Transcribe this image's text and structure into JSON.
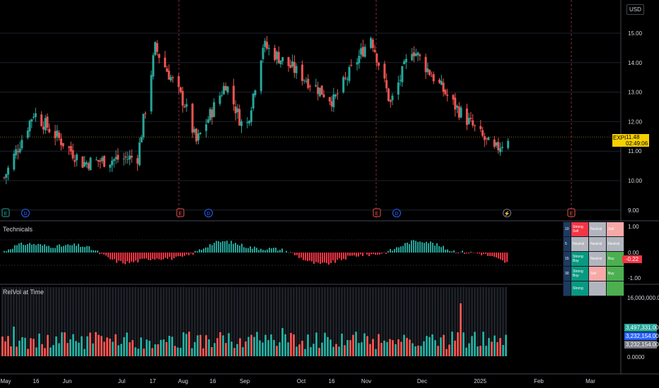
{
  "currency": "USD",
  "symbol_badge": {
    "ticker": "EXPI",
    "price": "11.48",
    "countdown": "02:49:06",
    "color": "#f7d000"
  },
  "colors": {
    "up": "#26a69a",
    "down": "#ef5350",
    "background": "#000000",
    "grid": "#1e222d",
    "event_line": "#8b2b36"
  },
  "price_axis": [
    "15.00",
    "14.00",
    "13.00",
    "12.00",
    "11.00",
    "10.00",
    "9.00"
  ],
  "time_axis": [
    "May",
    "16",
    "Jun",
    "Jul",
    "17",
    "Aug",
    "16",
    "Sep",
    "Oct",
    "16",
    "Nov",
    "Dec",
    "2025",
    "Feb",
    "Mar"
  ],
  "event_markers": [
    {
      "label": "E",
      "type": "earnings",
      "color": "#26a69a"
    },
    {
      "label": "D",
      "type": "dividend",
      "color": "#2962ff"
    },
    {
      "label": "E",
      "type": "earnings",
      "color": "#ef5350"
    },
    {
      "label": "D",
      "type": "dividend",
      "color": "#2962ff"
    },
    {
      "label": "E",
      "type": "earnings",
      "color": "#ef5350"
    },
    {
      "label": "D",
      "type": "dividend",
      "color": "#2962ff"
    },
    {
      "label": "⚡",
      "type": "split",
      "color": "#787b86"
    },
    {
      "label": "E",
      "type": "earnings",
      "color": "#ef5350"
    }
  ],
  "technicals": {
    "title": "Technicals",
    "axis": [
      "1.00",
      "0.00",
      "-1.00"
    ],
    "current_value": "-0.22",
    "table": [
      {
        "period": "10",
        "a": "Strong Sell",
        "b": "Neutral",
        "c": "Sell",
        "ca": "#f23645",
        "cb": "#b2b5be",
        "cc": "#f7a9a7"
      },
      {
        "period": "5",
        "a": "Neutral",
        "b": "Neutral",
        "c": "Neutral",
        "ca": "#b2b5be",
        "cb": "#b2b5be",
        "cc": "#b2b5be"
      },
      {
        "period": "15",
        "a": "Strong Buy",
        "b": "Neutral",
        "c": "Buy",
        "ca": "#089981",
        "cb": "#b2b5be",
        "cc": "#4caf50"
      },
      {
        "period": "30",
        "a": "Strong Buy",
        "b": "Sell",
        "c": "Buy",
        "ca": "#089981",
        "cb": "#f7a9a7",
        "cc": "#4caf50"
      },
      {
        "period": "",
        "a": "Strong",
        "b": "",
        "c": "",
        "ca": "#089981",
        "cb": "#b2b5be",
        "cc": "#4caf50"
      }
    ]
  },
  "relvol": {
    "title": "RelVol at Time",
    "axis": [
      "16,000,000.00",
      "0.0000"
    ],
    "badges": [
      {
        "value": "3,497,331.00",
        "color": "#26a69a"
      },
      {
        "value": "3,232,154.00",
        "color": "#2962ff"
      },
      {
        "value": "3,232,154.00",
        "color": "#787b86"
      }
    ]
  },
  "chart_data": {
    "type": "candlestick",
    "ylim": [
      8.8,
      15.5
    ],
    "x_range": [
      "2024-05-01",
      "2025-03-05"
    ],
    "last_close": 11.48,
    "key_levels_close": [
      {
        "date": "2024-05-01",
        "close": 10.1
      },
      {
        "date": "2024-05-16",
        "close": 12.3
      },
      {
        "date": "2024-06-10",
        "close": 10.6
      },
      {
        "date": "2024-07-08",
        "close": 10.8
      },
      {
        "date": "2024-07-17",
        "close": 14.5
      },
      {
        "date": "2024-08-01",
        "close": 12.6
      },
      {
        "date": "2024-08-07",
        "close": 11.3
      },
      {
        "date": "2024-08-22",
        "close": 13.3
      },
      {
        "date": "2024-09-01",
        "close": 11.6
      },
      {
        "date": "2024-09-10",
        "close": 14.6
      },
      {
        "date": "2024-10-16",
        "close": 12.7
      },
      {
        "date": "2024-11-04",
        "close": 14.9
      },
      {
        "date": "2024-11-14",
        "close": 12.6
      },
      {
        "date": "2024-11-25",
        "close": 14.5
      },
      {
        "date": "2024-12-16",
        "close": 12.6
      },
      {
        "date": "2025-01-06",
        "close": 11.0
      },
      {
        "date": "2025-01-13",
        "close": 11.48
      }
    ]
  }
}
